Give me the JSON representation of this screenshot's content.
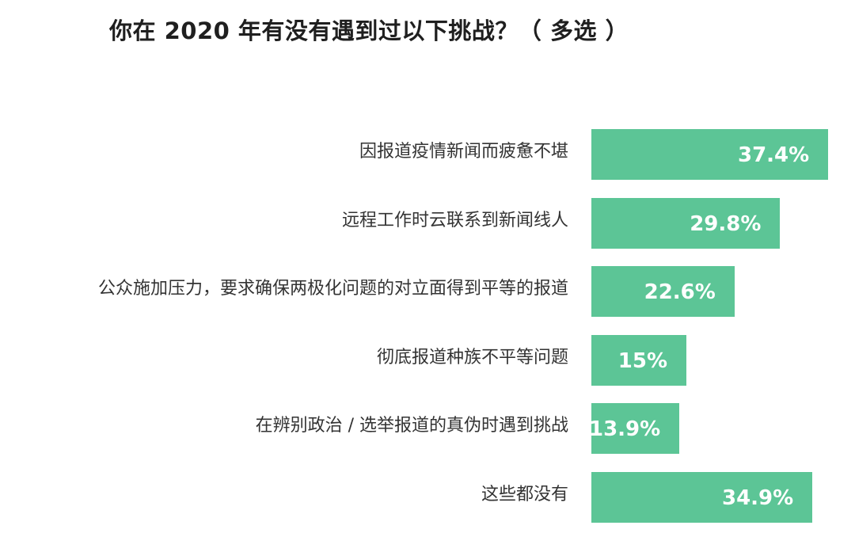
{
  "title": "你在 2020 年有没有遇到过以下挑战？（ 多选 ）",
  "chart_data": {
    "type": "bar",
    "orientation": "horizontal",
    "title": "你在 2020 年有没有遇到过以下挑战？（ 多选 ）",
    "categories": [
      "因报道疫情新闻而疲惫不堪",
      "远程工作时云联系到新闻线人",
      "公众施加压力，要求确保两极化问题的对立面得到平等的报道",
      "彻底报道种族不平等问题",
      "在辨别政治 / 选举报道的真伪时遇到挑战",
      "这些都没有"
    ],
    "values": [
      37.4,
      29.8,
      22.6,
      15,
      13.9,
      34.9
    ],
    "value_labels": [
      "37.4%",
      "29.8%",
      "22.6%",
      "15%",
      "13.9%",
      "34.9%"
    ],
    "unit": "%",
    "grid": false,
    "legend": "none",
    "colors": {
      "bar": "#5cc596",
      "value_text": "#ffffff",
      "label_text": "#333333"
    }
  }
}
